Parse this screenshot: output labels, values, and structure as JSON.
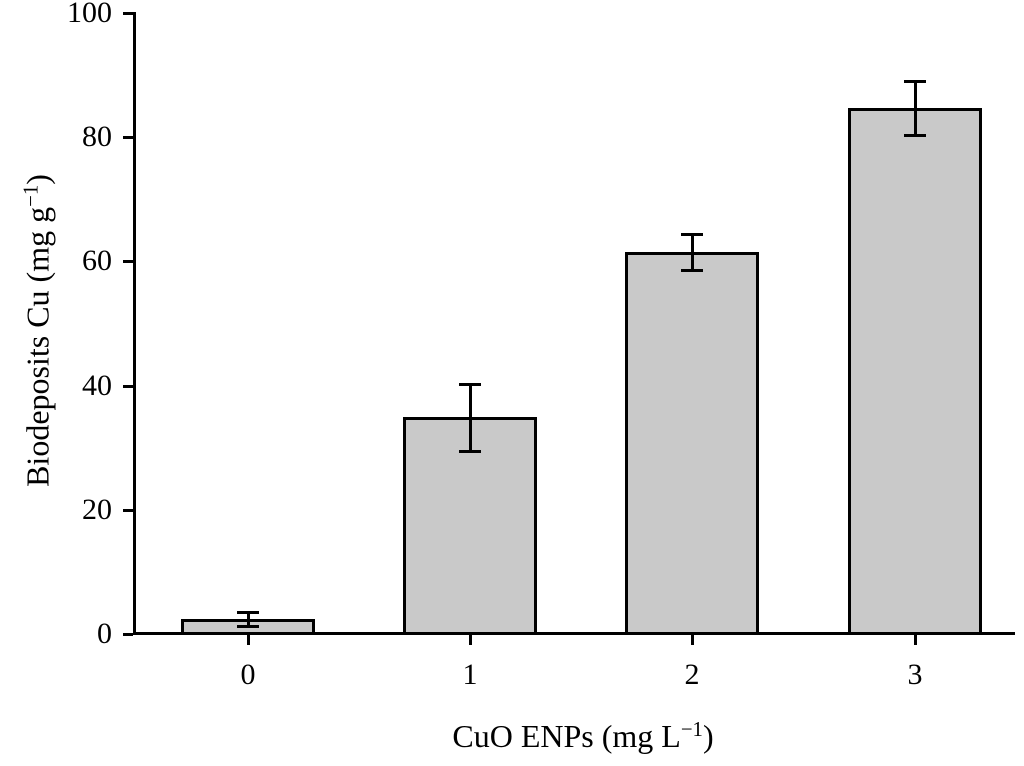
{
  "chart_data": {
    "type": "bar",
    "title": "",
    "categories": [
      "0",
      "1",
      "2",
      "3"
    ],
    "values": [
      2.4,
      34.9,
      61.5,
      84.7
    ],
    "error_bars": [
      1.1,
      5.4,
      2.9,
      4.4
    ],
    "xlabel": "CuO ENPs (mg L−1)",
    "ylabel": "Biodeposits Cu (mg g−1)",
    "xlabel_parts": [
      "CuO ENPs (mg L",
      "−1",
      ")"
    ],
    "ylabel_parts": [
      "Biodeposits Cu (mg g",
      "−1",
      ")"
    ],
    "ylim": [
      0,
      100
    ],
    "yticks": [
      0,
      20,
      40,
      60,
      80,
      100
    ],
    "grid": false,
    "legend": null,
    "bar_fill_color": "#c9c9c9",
    "line_color": "#000000",
    "background_color": "#ffffff"
  }
}
